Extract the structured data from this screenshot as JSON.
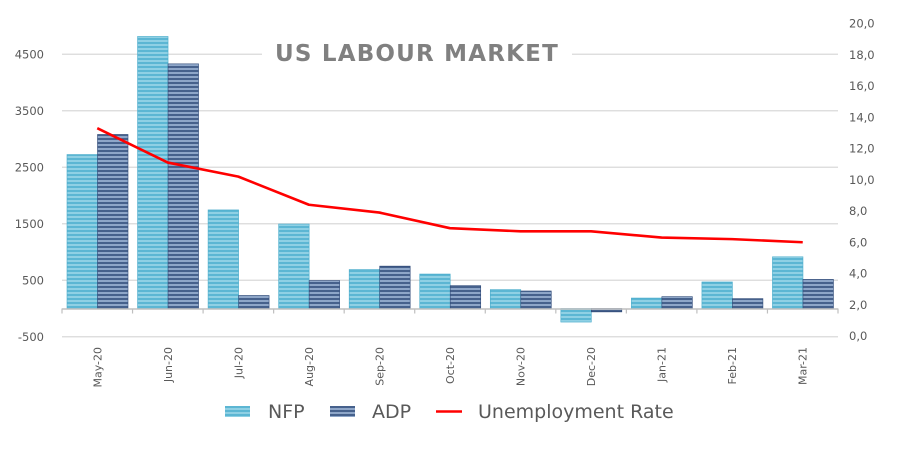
{
  "chart_data": {
    "type": "bar",
    "title": "US LABOUR MARKET",
    "xlabel": "",
    "ylabel": "",
    "y2label": "",
    "categories": [
      "May-20",
      "Jun-20",
      "Jul-20",
      "Aug-20",
      "Sep-20",
      "Oct-20",
      "Nov-20",
      "Dec-20",
      "Jan-21",
      "Feb-21",
      "Mar-21"
    ],
    "series": [
      {
        "name": "NFP",
        "type": "bar",
        "axis": "left",
        "color": "#5bb8d4",
        "values": [
          2725,
          4815,
          1745,
          1495,
          690,
          610,
          335,
          -240,
          185,
          470,
          915
        ]
      },
      {
        "name": "ADP",
        "type": "bar",
        "axis": "left",
        "color": "#3f5e8c",
        "values": [
          3080,
          4330,
          230,
          495,
          750,
          405,
          310,
          -60,
          210,
          175,
          515
        ]
      },
      {
        "name": "Unemployment Rate",
        "type": "line",
        "axis": "right",
        "color": "#ff0000",
        "values": [
          13.3,
          11.1,
          10.2,
          8.4,
          7.9,
          6.9,
          6.7,
          6.7,
          6.3,
          6.2,
          6.0
        ]
      }
    ],
    "ylim": [
      -500,
      5000
    ],
    "y2lim": [
      0,
      20
    ],
    "yticks": [
      "4500",
      "3500",
      "2500",
      "1500",
      "500",
      "-500"
    ],
    "ytick_values": [
      4500,
      3500,
      2500,
      1500,
      500,
      -500
    ],
    "y2ticks": [
      "20,0",
      "18,0",
      "16,0",
      "14,0",
      "12,0",
      "10,0",
      "8,0",
      "6,0",
      "4,0",
      "2,0",
      "0,0"
    ],
    "y2tick_values": [
      20,
      18,
      16,
      14,
      12,
      10,
      8,
      6,
      4,
      2,
      0
    ],
    "grid": true,
    "legend": {
      "position": "bottom",
      "entries": [
        "NFP",
        "ADP",
        "Unemployment Rate"
      ]
    }
  }
}
